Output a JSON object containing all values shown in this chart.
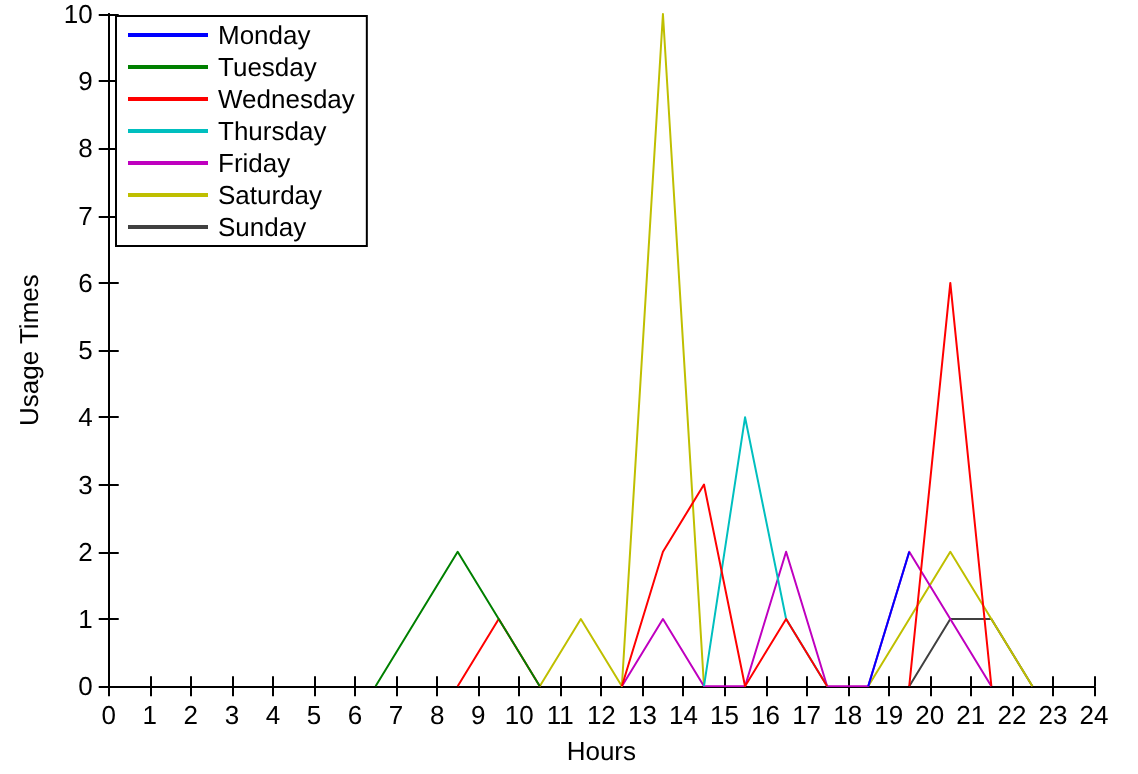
{
  "chart_data": {
    "type": "line",
    "xlabel": "Hours",
    "ylabel": "Usage Times",
    "x": [
      6.5,
      7.5,
      8.5,
      9.5,
      10.5,
      11.5,
      12.5,
      13.5,
      14.5,
      15.5,
      16.5,
      17.5,
      18.5,
      19.5,
      20.5,
      21.5,
      22.5
    ],
    "series": [
      {
        "name": "Monday",
        "color": "#0000ff",
        "values": [
          null,
          null,
          null,
          null,
          null,
          null,
          null,
          null,
          null,
          null,
          null,
          null,
          0,
          2,
          null,
          null,
          null
        ]
      },
      {
        "name": "Tuesday",
        "color": "#008000",
        "values": [
          0,
          1,
          2,
          1,
          0,
          null,
          null,
          null,
          null,
          null,
          null,
          null,
          null,
          null,
          null,
          null,
          null
        ]
      },
      {
        "name": "Wednesday",
        "color": "#ff0000",
        "values": [
          null,
          null,
          0,
          1,
          0,
          null,
          0,
          2,
          3,
          0,
          1,
          0,
          null,
          0,
          6,
          0,
          null
        ]
      },
      {
        "name": "Thursday",
        "color": "#00bfbf",
        "values": [
          null,
          null,
          null,
          null,
          null,
          null,
          null,
          null,
          0,
          4,
          1,
          0,
          null,
          null,
          null,
          null,
          null
        ]
      },
      {
        "name": "Friday",
        "color": "#bf00bf",
        "values": [
          null,
          null,
          null,
          null,
          null,
          null,
          0,
          1,
          0,
          0,
          2,
          0,
          0,
          2,
          1,
          0,
          null
        ]
      },
      {
        "name": "Saturday",
        "color": "#bfbf00",
        "values": [
          null,
          null,
          null,
          null,
          0,
          1,
          0,
          10,
          0,
          null,
          null,
          null,
          0,
          1,
          2,
          1,
          0
        ]
      },
      {
        "name": "Sunday",
        "color": "#404040",
        "values": [
          null,
          null,
          null,
          null,
          null,
          null,
          null,
          null,
          null,
          null,
          null,
          null,
          null,
          0,
          1,
          1,
          0
        ]
      }
    ],
    "xlim": [
      0,
      24
    ],
    "xticks": [
      0,
      1,
      2,
      3,
      4,
      5,
      6,
      7,
      8,
      9,
      10,
      11,
      12,
      13,
      14,
      15,
      16,
      17,
      18,
      19,
      20,
      21,
      22,
      23,
      24
    ],
    "ylim": [
      0,
      10
    ],
    "yticks": [
      0,
      1,
      2,
      3,
      4,
      5,
      6,
      7,
      8,
      9,
      10
    ],
    "grid": false,
    "legend": "top left",
    "marker": "none",
    "line_style": "solid"
  }
}
